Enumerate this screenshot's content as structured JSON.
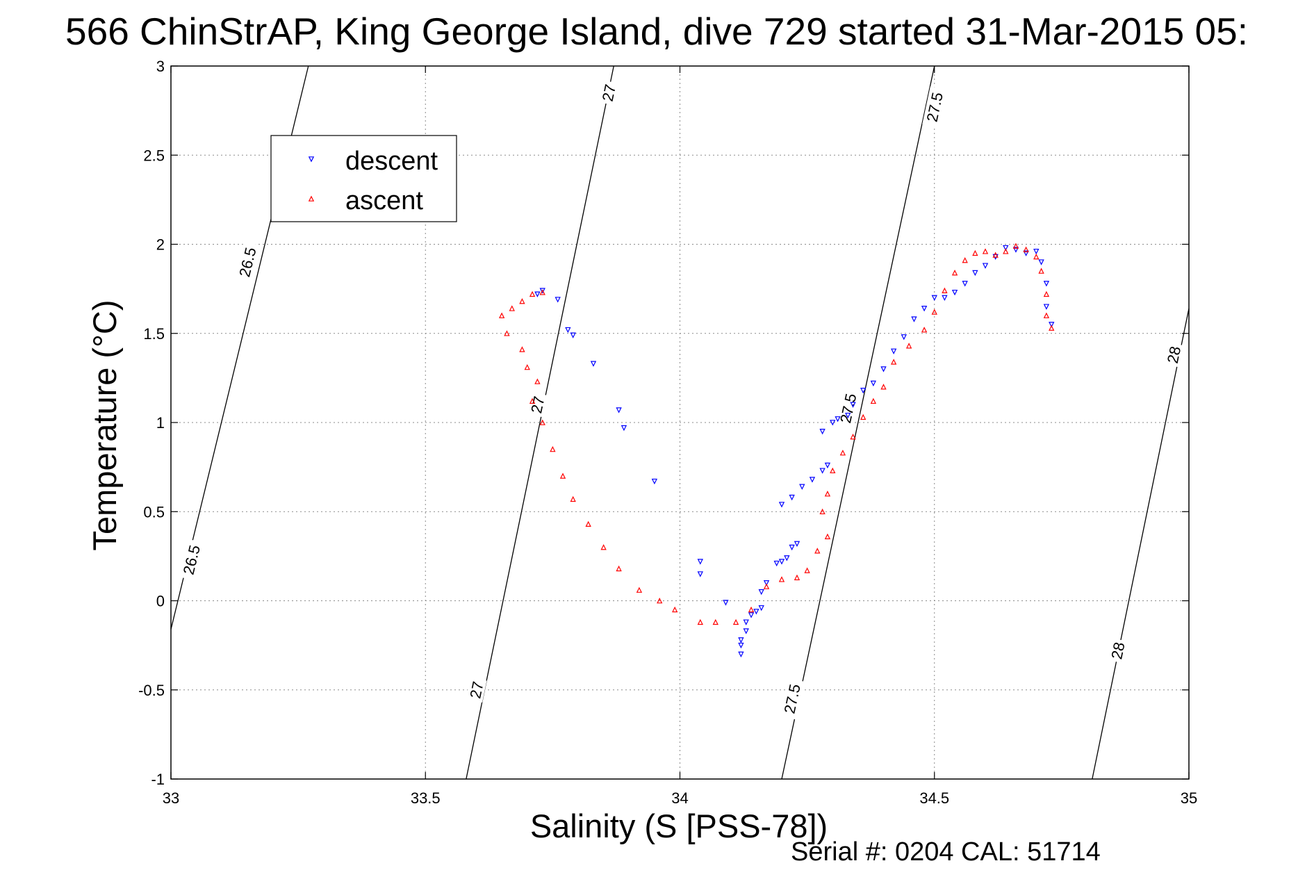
{
  "chart_data": {
    "type": "scatter",
    "title": "566 ChinStrAP, King George Island, dive 729 started 31-Mar-2015 05:",
    "xlabel": "Salinity (S [PSS-78])",
    "ylabel": "Temperature (°C)",
    "xlim": [
      33,
      35
    ],
    "ylim": [
      -1,
      3
    ],
    "x_ticks": [
      33,
      33.5,
      34,
      34.5,
      35
    ],
    "x_tick_labels": [
      "33",
      "33.5",
      "34",
      "34.5",
      "35"
    ],
    "y_ticks": [
      -1,
      -0.5,
      0,
      0.5,
      1,
      1.5,
      2,
      2.5,
      3
    ],
    "y_tick_labels": [
      "-1",
      "-0.5",
      "0",
      "0.5",
      "1",
      "1.5",
      "2",
      "2.5",
      "3"
    ],
    "grid": true,
    "legend_position": "top-left",
    "series": [
      {
        "name": "descent",
        "color": "#0000ff",
        "marker": "triangle-down",
        "points": [
          [
            33.73,
            1.74
          ],
          [
            33.72,
            1.72
          ],
          [
            33.76,
            1.69
          ],
          [
            33.78,
            1.52
          ],
          [
            33.79,
            1.49
          ],
          [
            33.83,
            1.33
          ],
          [
            33.88,
            1.07
          ],
          [
            33.89,
            0.97
          ],
          [
            33.95,
            0.67
          ],
          [
            34.04,
            0.22
          ],
          [
            34.04,
            0.15
          ],
          [
            34.09,
            -0.01
          ],
          [
            34.12,
            -0.22
          ],
          [
            34.12,
            -0.25
          ],
          [
            34.12,
            -0.3
          ],
          [
            34.13,
            -0.17
          ],
          [
            34.13,
            -0.12
          ],
          [
            34.14,
            -0.08
          ],
          [
            34.15,
            -0.06
          ],
          [
            34.16,
            -0.04
          ],
          [
            34.16,
            0.05
          ],
          [
            34.17,
            0.1
          ],
          [
            34.19,
            0.21
          ],
          [
            34.2,
            0.22
          ],
          [
            34.21,
            0.24
          ],
          [
            34.22,
            0.3
          ],
          [
            34.23,
            0.32
          ],
          [
            34.2,
            0.54
          ],
          [
            34.22,
            0.58
          ],
          [
            34.24,
            0.64
          ],
          [
            34.26,
            0.68
          ],
          [
            34.28,
            0.73
          ],
          [
            34.29,
            0.76
          ],
          [
            34.28,
            0.95
          ],
          [
            34.3,
            1.0
          ],
          [
            34.31,
            1.02
          ],
          [
            34.33,
            1.04
          ],
          [
            34.34,
            1.1
          ],
          [
            34.36,
            1.18
          ],
          [
            34.38,
            1.22
          ],
          [
            34.4,
            1.3
          ],
          [
            34.42,
            1.4
          ],
          [
            34.44,
            1.48
          ],
          [
            34.46,
            1.58
          ],
          [
            34.48,
            1.64
          ],
          [
            34.5,
            1.7
          ],
          [
            34.52,
            1.7
          ],
          [
            34.54,
            1.73
          ],
          [
            34.56,
            1.78
          ],
          [
            34.58,
            1.84
          ],
          [
            34.6,
            1.88
          ],
          [
            34.62,
            1.93
          ],
          [
            34.64,
            1.98
          ],
          [
            34.66,
            1.97
          ],
          [
            34.68,
            1.95
          ],
          [
            34.7,
            1.96
          ],
          [
            34.71,
            1.9
          ],
          [
            34.72,
            1.78
          ],
          [
            34.72,
            1.65
          ],
          [
            34.73,
            1.55
          ]
        ]
      },
      {
        "name": "ascent",
        "color": "#ff0000",
        "marker": "triangle-up",
        "points": [
          [
            33.73,
            1.73
          ],
          [
            33.71,
            1.72
          ],
          [
            33.69,
            1.68
          ],
          [
            33.67,
            1.64
          ],
          [
            33.65,
            1.6
          ],
          [
            33.66,
            1.5
          ],
          [
            33.69,
            1.41
          ],
          [
            33.7,
            1.31
          ],
          [
            33.72,
            1.23
          ],
          [
            33.71,
            1.12
          ],
          [
            33.73,
            1.0
          ],
          [
            33.75,
            0.85
          ],
          [
            33.77,
            0.7
          ],
          [
            33.79,
            0.57
          ],
          [
            33.82,
            0.43
          ],
          [
            33.85,
            0.3
          ],
          [
            33.88,
            0.18
          ],
          [
            33.92,
            0.06
          ],
          [
            33.96,
            0.0
          ],
          [
            33.99,
            -0.05
          ],
          [
            34.04,
            -0.12
          ],
          [
            34.07,
            -0.12
          ],
          [
            34.11,
            -0.12
          ],
          [
            34.14,
            -0.05
          ],
          [
            34.17,
            0.08
          ],
          [
            34.2,
            0.12
          ],
          [
            34.23,
            0.13
          ],
          [
            34.25,
            0.17
          ],
          [
            34.27,
            0.28
          ],
          [
            34.29,
            0.36
          ],
          [
            34.28,
            0.5
          ],
          [
            34.29,
            0.6
          ],
          [
            34.3,
            0.73
          ],
          [
            34.32,
            0.83
          ],
          [
            34.34,
            0.92
          ],
          [
            34.36,
            1.03
          ],
          [
            34.38,
            1.12
          ],
          [
            34.4,
            1.2
          ],
          [
            34.42,
            1.34
          ],
          [
            34.45,
            1.43
          ],
          [
            34.48,
            1.52
          ],
          [
            34.5,
            1.62
          ],
          [
            34.52,
            1.74
          ],
          [
            34.54,
            1.84
          ],
          [
            34.56,
            1.91
          ],
          [
            34.58,
            1.95
          ],
          [
            34.6,
            1.96
          ],
          [
            34.62,
            1.94
          ],
          [
            34.64,
            1.96
          ],
          [
            34.66,
            1.99
          ],
          [
            34.68,
            1.97
          ],
          [
            34.7,
            1.93
          ],
          [
            34.71,
            1.85
          ],
          [
            34.72,
            1.72
          ],
          [
            34.72,
            1.6
          ],
          [
            34.73,
            1.53
          ]
        ]
      }
    ],
    "contours": [
      {
        "label": "26.5",
        "points": [
          [
            33.0,
            -0.16
          ],
          [
            33.27,
            3.0
          ]
        ],
        "label_positions": [
          [
            33.15,
            1.9
          ],
          [
            33.04,
            0.23
          ]
        ]
      },
      {
        "label": "27",
        "points": [
          [
            33.58,
            -1.0
          ],
          [
            33.87,
            3.0
          ]
        ],
        "label_positions": [
          [
            33.86,
            2.85
          ],
          [
            33.72,
            1.1
          ],
          [
            33.6,
            -0.5
          ]
        ]
      },
      {
        "label": "27.5",
        "points": [
          [
            34.2,
            -1.0
          ],
          [
            34.5,
            3.0
          ]
        ],
        "label_positions": [
          [
            34.5,
            2.77
          ],
          [
            34.33,
            1.08
          ],
          [
            34.22,
            -0.55
          ]
        ]
      },
      {
        "label": "28",
        "points": [
          [
            34.81,
            -1.0
          ],
          [
            35.0,
            1.64
          ]
        ],
        "label_positions": [
          [
            34.97,
            1.38
          ],
          [
            34.86,
            -0.28
          ]
        ]
      }
    ]
  },
  "footer": {
    "serial_text": "Serial #: 0204  CAL: 51714"
  }
}
